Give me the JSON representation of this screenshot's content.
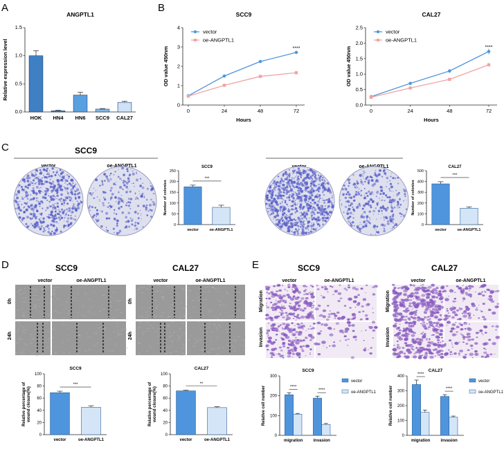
{
  "panels": {
    "A": "A",
    "B": "B",
    "C": "C",
    "D": "D",
    "E": "E"
  },
  "colors": {
    "bar_dark": "#3f7fc4",
    "bar_mid": "#4f95dd",
    "bar_light": "#d4e5f7",
    "line_vector": "#4f95dd",
    "line_oe": "#f0a3a3",
    "plate": "#5a62c8",
    "scratch": "#9a9a9a",
    "stain": "#8a5cc0"
  },
  "figA": {
    "chart_data": {
      "type": "bar",
      "title": "ANGPTL1",
      "ylabel": "Relative expression level",
      "categories": [
        "HOK",
        "HN4",
        "HN6",
        "SCC9",
        "CAL27"
      ],
      "values": [
        1.0,
        0.02,
        0.3,
        0.05,
        0.17
      ],
      "errors": [
        0.09,
        0.01,
        0.05,
        0.01,
        0.02
      ],
      "ylim": [
        0,
        1.5
      ],
      "yticks": [
        "0.0",
        "0.5",
        "1.0",
        "1.5"
      ],
      "colors": [
        "#3f7fc4",
        "#3f7fc4",
        "#5aa0e0",
        "#7fb6e8",
        "#cfe2f6"
      ]
    }
  },
  "figB": {
    "chart_data": [
      {
        "type": "line",
        "title": "SCC9",
        "xlabel": "Hours",
        "ylabel": "OD value 450nm",
        "x": [
          0,
          24,
          48,
          72
        ],
        "xticks": [
          "0",
          "24",
          "48",
          "72"
        ],
        "ylim": [
          0,
          4
        ],
        "yticks": [
          "0",
          "1",
          "2",
          "3",
          "4"
        ],
        "series": [
          {
            "name": "vector",
            "values": [
              0.48,
              1.5,
              2.25,
              2.72
            ],
            "err": [
              0.03,
              0.05,
              0.05,
              0.06
            ]
          },
          {
            "name": "oe-ANGPTL1",
            "values": [
              0.46,
              1.02,
              1.48,
              1.67
            ],
            "err": [
              0.03,
              0.04,
              0.04,
              0.05
            ]
          }
        ],
        "annotation": "****",
        "legend": "top-left"
      },
      {
        "type": "line",
        "title": "CAL27",
        "xlabel": "Hours",
        "ylabel": "OD value 450nm",
        "x": [
          0,
          24,
          48,
          72
        ],
        "xticks": [
          "0",
          "24",
          "48",
          "72"
        ],
        "ylim": [
          0,
          2.5
        ],
        "yticks": [
          "0.0",
          "0.5",
          "1.0",
          "1.5",
          "2.0",
          "2.5"
        ],
        "series": [
          {
            "name": "vector",
            "values": [
              0.27,
              0.7,
              1.1,
              1.73
            ],
            "err": [
              0.03,
              0.05,
              0.06,
              0.09
            ]
          },
          {
            "name": "oe-ANGPTL1",
            "values": [
              0.25,
              0.55,
              0.83,
              1.3
            ],
            "err": [
              0.02,
              0.03,
              0.04,
              0.04
            ]
          }
        ],
        "annotation": "****",
        "legend": "top-left"
      }
    ]
  },
  "figC": {
    "scc9": {
      "title": "SCC9",
      "vector": "vector",
      "oe": "oe-ANGPTL1"
    },
    "cal27": {
      "title": "CAL27",
      "vector": "vector",
      "oe": "oe-ANGPTL1"
    },
    "chart_data": [
      {
        "type": "bar",
        "title": "SCC9",
        "ylabel": "Number of colonies",
        "categories": [
          "vector",
          "oe-ANGPTL1"
        ],
        "values": [
          175,
          80
        ],
        "errors": [
          8,
          10
        ],
        "ylim": [
          0,
          250
        ],
        "yticks": [
          "0",
          "50",
          "100",
          "150",
          "200",
          "250"
        ],
        "annotation": "***"
      },
      {
        "type": "bar",
        "title": "CAL27",
        "ylabel": "Number of colonies",
        "categories": [
          "vector",
          "oe-ANGPTL1"
        ],
        "values": [
          378,
          152
        ],
        "errors": [
          20,
          12
        ],
        "ylim": [
          0,
          500
        ],
        "yticks": [
          "0",
          "100",
          "200",
          "300",
          "400",
          "500"
        ],
        "annotation": "***"
      }
    ]
  },
  "figD": {
    "scc9": {
      "title": "SCC9",
      "vector": "vector",
      "oe": "oe-ANGPTL1",
      "row1": "0h",
      "row2": "24h"
    },
    "cal27": {
      "title": "CAL27",
      "vector": "vector",
      "oe": "oe-ANGPTL1",
      "row1": "0h",
      "row2": "24h"
    },
    "chart_data": [
      {
        "type": "bar",
        "title": "SCC9",
        "ylabel": "Relative percentage of wound closure(%)",
        "categories": [
          "vector",
          "oe-ANGPTL1"
        ],
        "values": [
          69,
          45
        ],
        "errors": [
          2.5,
          2.5
        ],
        "ylim": [
          0,
          100
        ],
        "yticks": [
          "0",
          "20",
          "40",
          "60",
          "80",
          "100"
        ],
        "annotation": "***"
      },
      {
        "type": "bar",
        "title": "CAL27",
        "ylabel": "Relative percentage of wound closure(%)",
        "categories": [
          "vector",
          "oe-ANGPTL1"
        ],
        "values": [
          72,
          44.5
        ],
        "errors": [
          1,
          1.5
        ],
        "ylim": [
          0,
          100
        ],
        "yticks": [
          "0",
          "20",
          "40",
          "60",
          "80",
          "100"
        ],
        "annotation": "**"
      }
    ]
  },
  "figE": {
    "scc9": {
      "title": "SCC9",
      "vector": "vector",
      "oe": "oe-ANGPTL1",
      "row1": "Migration",
      "row2": "Invasion"
    },
    "cal27": {
      "title": "CAL27",
      "vector": "vector",
      "oe": "oe-ANGPTL1",
      "row1": "Migration",
      "row2": "Invasion"
    },
    "chart_data": [
      {
        "type": "bar",
        "title": "SCC9",
        "ylabel": "Relative cell number",
        "categories": [
          "migration",
          "invasion"
        ],
        "series": [
          {
            "name": "vector",
            "values": [
              205,
              188
            ],
            "errors": [
              10,
              10
            ]
          },
          {
            "name": "oe-ANGPTL1",
            "values": [
              107,
              55
            ],
            "errors": [
              4,
              5
            ]
          }
        ],
        "ylim": [
          0,
          300
        ],
        "yticks": [
          "0",
          "100",
          "200",
          "300"
        ],
        "annotation": [
          "****",
          "****"
        ],
        "legend": "right"
      },
      {
        "type": "bar",
        "title": "CAL27",
        "ylabel": "Relative cell number",
        "categories": [
          "migration",
          "invasion"
        ],
        "series": [
          {
            "name": "vector",
            "values": [
              342,
              262
            ],
            "errors": [
              30,
              12
            ]
          },
          {
            "name": "oe-ANGPTL1",
            "values": [
              155,
              122
            ],
            "errors": [
              15,
              8
            ]
          }
        ],
        "ylim": [
          0,
          400
        ],
        "yticks": [
          "0",
          "100",
          "200",
          "300",
          "400"
        ],
        "annotation": [
          "****",
          "****"
        ],
        "legend": "right"
      }
    ]
  }
}
